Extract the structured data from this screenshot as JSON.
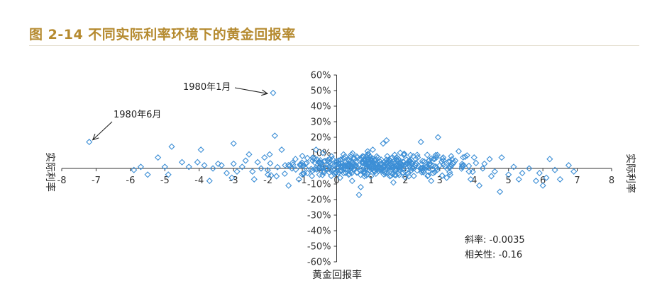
{
  "figure": {
    "title": "图 2-14 不同实际利率环境下的黄金回报率"
  },
  "colors": {
    "title": "#b58a2f",
    "marker": "#3d8fd6",
    "axis": "#333333"
  },
  "chart_data": {
    "type": "scatter",
    "x_axis_label_left": "实际利率",
    "x_axis_label_right": "实际利率",
    "y_axis_label": "黄金回报率",
    "xlim": [
      -8,
      8
    ],
    "ylim": [
      -0.6,
      0.6
    ],
    "x_ticks": [
      "-8",
      "-7",
      "-6",
      "-5",
      "-4",
      "-3",
      "-2",
      "-1",
      "0",
      "1",
      "2",
      "3",
      "4",
      "5",
      "6",
      "7",
      "8"
    ],
    "y_ticks": [
      "60%",
      "50%",
      "40%",
      "30%",
      "20%",
      "10%",
      "0%",
      "-10%",
      "-20%",
      "-30%",
      "-40%",
      "-50%",
      "-60%"
    ],
    "annotations": [
      {
        "text": "1980年1月",
        "x": -1.85,
        "y": 0.485
      },
      {
        "text": "1980年6月",
        "x": -7.2,
        "y": 0.17
      }
    ],
    "stats": {
      "slope": "斜率: -0.0035",
      "correlation": "相关性: -0.16"
    },
    "series": [
      {
        "marker": "diamond",
        "points": [
          [
            -1.85,
            0.485
          ],
          [
            -7.2,
            0.17
          ],
          [
            -1.8,
            0.21
          ],
          [
            -3.0,
            0.16
          ],
          [
            -4.8,
            0.14
          ],
          [
            -4.5,
            0.04
          ],
          [
            -5.2,
            0.07
          ],
          [
            -5.0,
            0.01
          ],
          [
            -5.9,
            -0.01
          ],
          [
            -5.7,
            0.01
          ],
          [
            -5.5,
            -0.04
          ],
          [
            -4.9,
            -0.04
          ],
          [
            -4.3,
            0.01
          ],
          [
            -4.05,
            0.04
          ],
          [
            -3.95,
            0.12
          ],
          [
            -3.85,
            0.02
          ],
          [
            -3.7,
            -0.08
          ],
          [
            -3.6,
            0.0
          ],
          [
            -3.45,
            0.03
          ],
          [
            -3.35,
            0.02
          ],
          [
            -3.2,
            -0.03
          ],
          [
            -3.0,
            0.03
          ],
          [
            -2.9,
            -0.02
          ],
          [
            -2.75,
            0.01
          ],
          [
            -2.65,
            0.05
          ],
          [
            -2.55,
            0.09
          ],
          [
            -2.45,
            -0.02
          ],
          [
            -2.3,
            0.04
          ],
          [
            -2.2,
            0.0
          ],
          [
            -2.1,
            0.07
          ],
          [
            -2.0,
            -0.04
          ],
          [
            -1.95,
            0.09
          ],
          [
            -1.6,
            0.12
          ],
          [
            -1.5,
            0.02
          ],
          [
            -1.4,
            -0.11
          ],
          [
            -1.2,
            0.06
          ],
          [
            -1.0,
            0.08
          ],
          [
            -0.85,
            -0.03
          ],
          [
            -0.6,
            0.12
          ],
          [
            -0.4,
            0.1
          ],
          [
            -0.2,
            0.06
          ],
          [
            -0.1,
            -0.01
          ],
          [
            0.05,
            0.05
          ],
          [
            0.2,
            0.09
          ],
          [
            0.35,
            -0.04
          ],
          [
            0.5,
            0.02
          ],
          [
            0.65,
            -0.17
          ],
          [
            0.7,
            -0.12
          ],
          [
            0.8,
            0.05
          ],
          [
            0.9,
            0.11
          ],
          [
            1.05,
            0.12
          ],
          [
            1.2,
            0.07
          ],
          [
            1.35,
            0.16
          ],
          [
            1.45,
            0.18
          ],
          [
            1.55,
            -0.05
          ],
          [
            1.7,
            0.03
          ],
          [
            1.85,
            0.1
          ],
          [
            2.0,
            -0.02
          ],
          [
            2.2,
            0.0
          ],
          [
            2.3,
            0.06
          ],
          [
            2.45,
            0.17
          ],
          [
            2.6,
            0.01
          ],
          [
            2.8,
            -0.03
          ],
          [
            2.95,
            0.2
          ],
          [
            3.1,
            0.07
          ],
          [
            3.3,
            -0.04
          ],
          [
            3.45,
            0.05
          ],
          [
            3.55,
            0.11
          ],
          [
            3.7,
            0.02
          ],
          [
            3.85,
            -0.02
          ],
          [
            4.0,
            0.07
          ],
          [
            4.15,
            -0.11
          ],
          [
            4.3,
            0.03
          ],
          [
            4.45,
            0.06
          ],
          [
            4.6,
            -0.02
          ],
          [
            4.75,
            -0.15
          ],
          [
            4.8,
            0.07
          ],
          [
            5.0,
            -0.04
          ],
          [
            5.15,
            0.01
          ],
          [
            5.4,
            -0.03
          ],
          [
            5.6,
            0.0
          ],
          [
            5.9,
            -0.03
          ],
          [
            6.0,
            -0.11
          ],
          [
            6.1,
            -0.06
          ],
          [
            6.2,
            0.06
          ],
          [
            6.35,
            -0.01
          ],
          [
            6.5,
            -0.07
          ],
          [
            6.75,
            0.02
          ],
          [
            6.9,
            -0.02
          ],
          [
            -3.05,
            -0.06
          ],
          [
            -2.4,
            -0.07
          ],
          [
            -1.75,
            -0.05
          ],
          [
            -1.1,
            -0.07
          ],
          [
            -0.5,
            -0.04
          ],
          [
            0.1,
            -0.06
          ],
          [
            0.45,
            -0.08
          ],
          [
            1.0,
            -0.05
          ],
          [
            1.65,
            -0.09
          ],
          [
            2.1,
            -0.05
          ],
          [
            2.75,
            -0.08
          ],
          [
            3.2,
            -0.06
          ],
          [
            3.9,
            -0.07
          ],
          [
            4.5,
            -0.05
          ],
          [
            5.3,
            -0.07
          ],
          [
            5.8,
            -0.08
          ],
          [
            -0.9,
            0.03
          ],
          [
            -0.3,
            0.0
          ],
          [
            0.3,
            0.03
          ],
          [
            0.95,
            0.01
          ],
          [
            1.5,
            0.04
          ],
          [
            2.05,
            0.03
          ],
          [
            2.5,
            -0.01
          ],
          [
            3.0,
            0.02
          ],
          [
            3.65,
            0.01
          ],
          [
            4.25,
            0.0
          ],
          [
            -1.3,
            0.0
          ],
          [
            -0.7,
            0.05
          ]
        ],
        "jitter_cluster": {
          "x_range": [
            -2.5,
            4.5
          ],
          "y_range": [
            -0.06,
            0.1
          ],
          "count": 380,
          "seed": 7
        }
      }
    ]
  }
}
